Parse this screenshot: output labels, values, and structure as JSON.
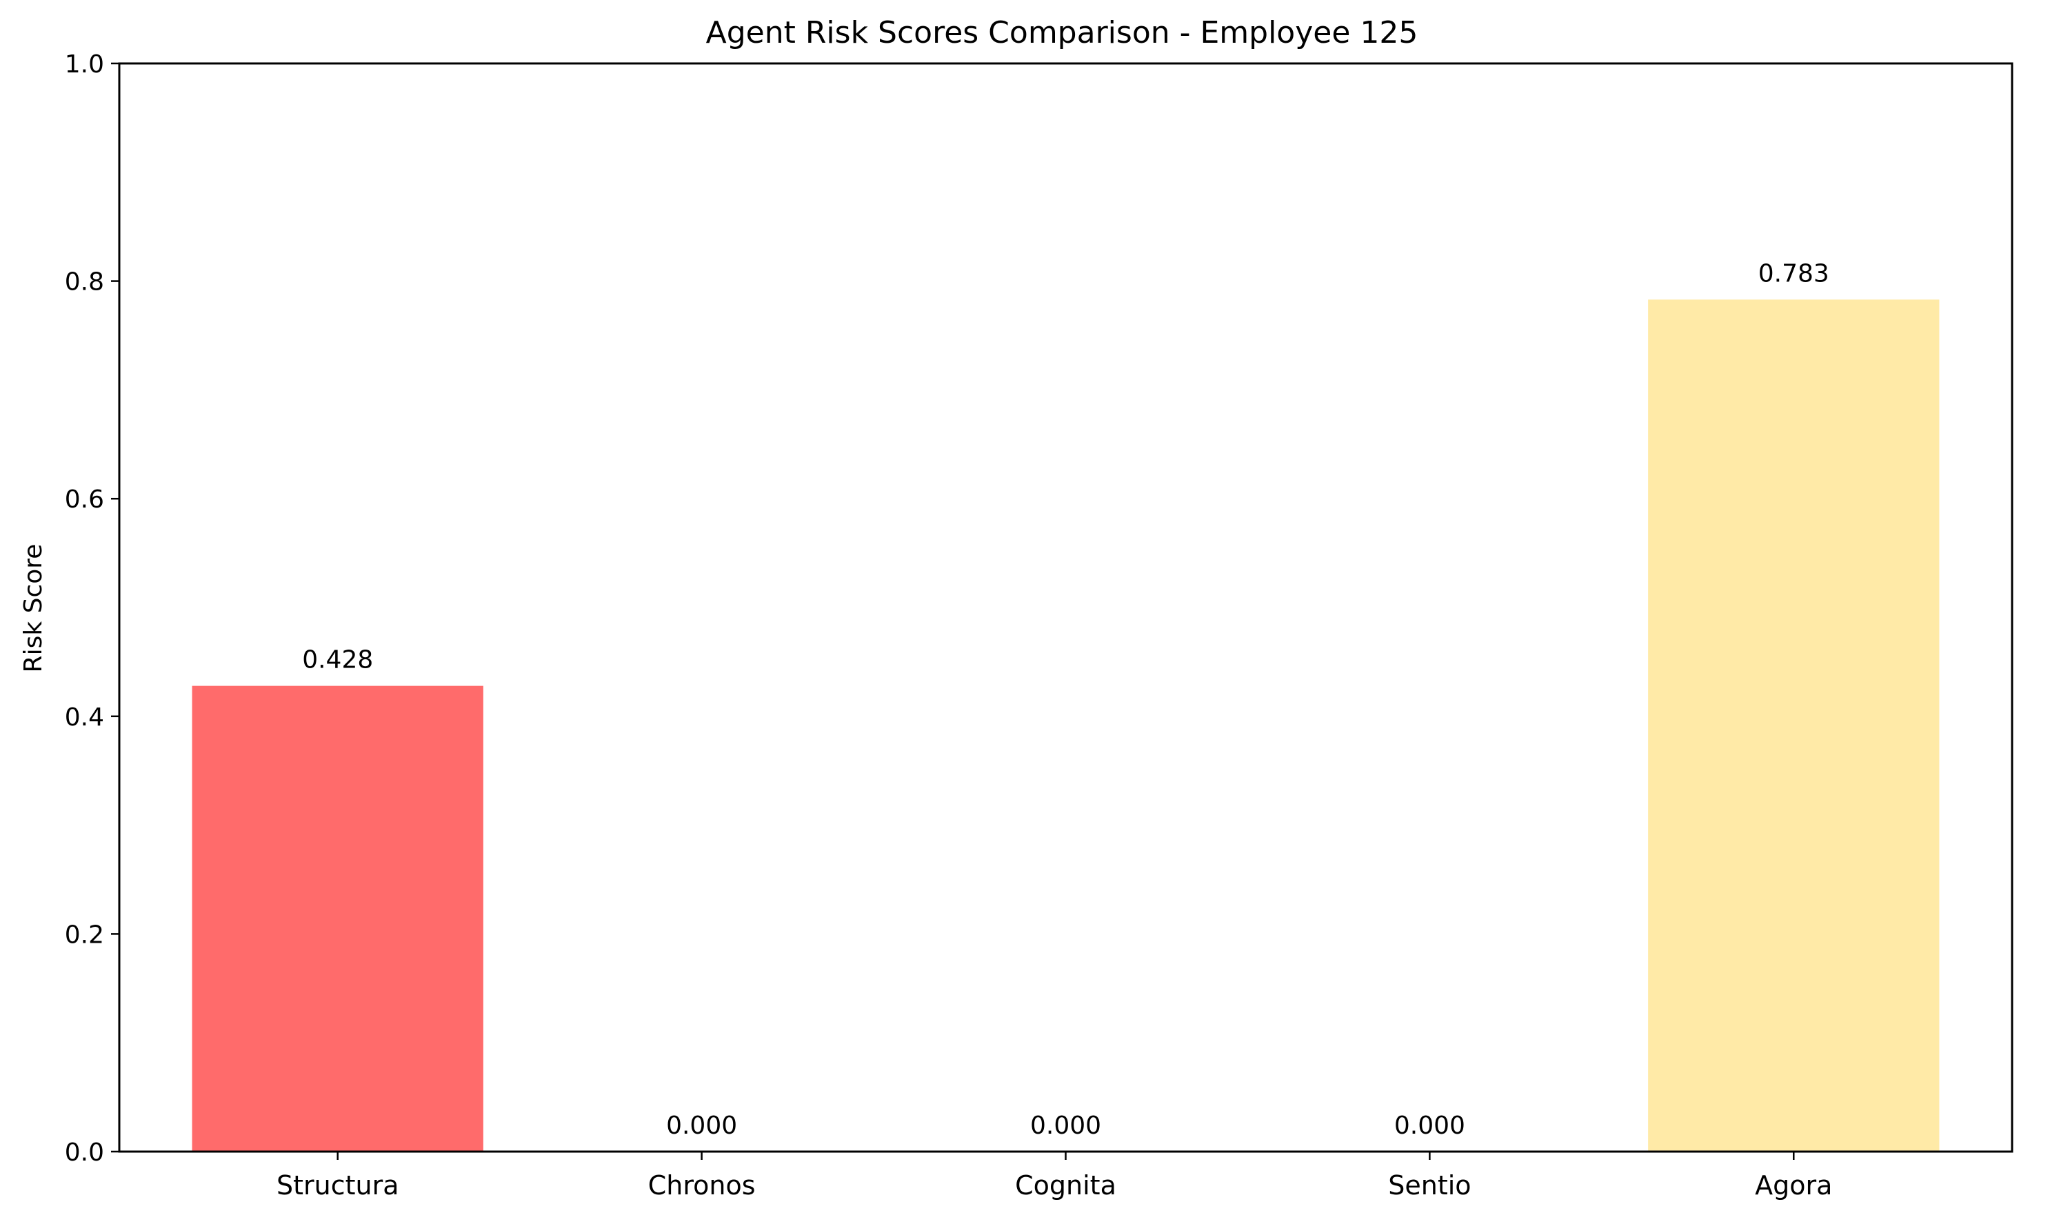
{
  "chart_data": {
    "type": "bar",
    "title": "Agent Risk Scores Comparison - Employee 125",
    "xlabel": "",
    "ylabel": "Risk Score",
    "ylim": [
      0,
      1.0
    ],
    "yticks": [
      0.0,
      0.2,
      0.4,
      0.6,
      0.8,
      1.0
    ],
    "ytick_labels": [
      "0.0",
      "0.2",
      "0.4",
      "0.6",
      "0.8",
      "1.0"
    ],
    "grid": false,
    "categories": [
      "Structura",
      "Chronos",
      "Cognita",
      "Sentio",
      "Agora"
    ],
    "values": [
      0.428,
      0.0,
      0.0,
      0.0,
      0.783
    ],
    "value_labels": [
      "0.428",
      "0.000",
      "0.000",
      "0.000",
      "0.783"
    ],
    "colors": [
      "#ff6b6b",
      "#4ecdc4",
      "#45b7d1",
      "#96ceb4",
      "#ffeaa7"
    ]
  }
}
